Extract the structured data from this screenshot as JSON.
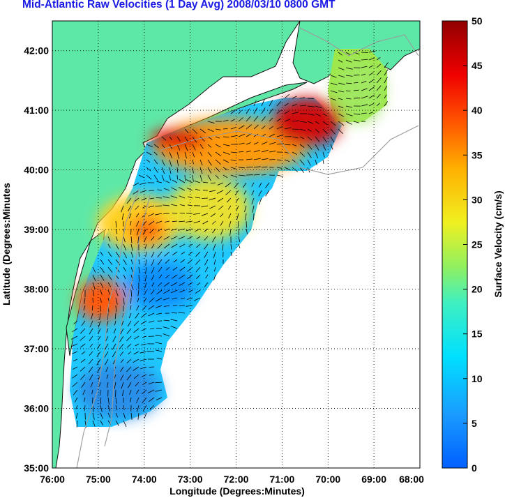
{
  "title": "Mid-Atlantic Raw Velocities (1 Day Avg) 2008/03/10 0800 GMT",
  "map": {
    "xlabel": "Longitude (Degrees:Minutes)",
    "ylabel": "Latitude (Degrees:Minutes",
    "x_ticks": [
      "76:00",
      "75:00",
      "74:00",
      "73:00",
      "72:00",
      "71:00",
      "70:00",
      "69:00",
      "68:00"
    ],
    "y_ticks": [
      "35:00",
      "36:00",
      "37:00",
      "38:00",
      "39:00",
      "40:00",
      "41:00",
      "42:00"
    ],
    "lon_range": [
      -76,
      -68
    ],
    "lat_range": [
      35,
      42.5
    ],
    "land_color": "#5ee8a8",
    "grid": "dotted"
  },
  "colorbar": {
    "label": "Surface Velocity (cm/s)",
    "ticks": [
      "0",
      "5",
      "10",
      "15",
      "20",
      "25",
      "30",
      "35",
      "40",
      "45",
      "50"
    ],
    "range": [
      0,
      50
    ],
    "colormap": "jet"
  }
}
